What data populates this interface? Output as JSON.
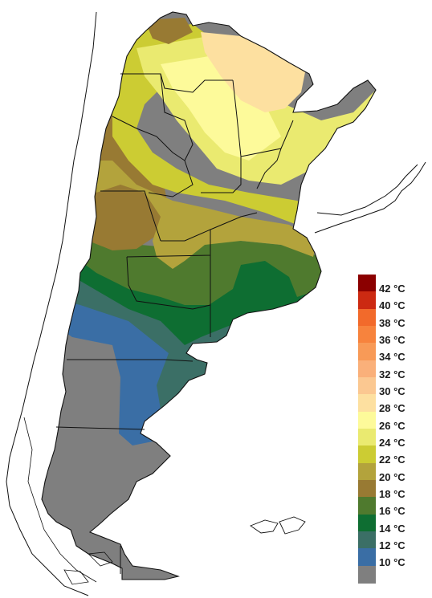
{
  "legend": {
    "items": [
      {
        "label": "42 °C",
        "color": "#8b0000"
      },
      {
        "label": "40 °C",
        "color": "#cc2a12"
      },
      {
        "label": "38 °C",
        "color": "#f26a2b"
      },
      {
        "label": "36 °C",
        "color": "#f7833d"
      },
      {
        "label": "34 °C",
        "color": "#f89a57"
      },
      {
        "label": "32 °C",
        "color": "#fab07a"
      },
      {
        "label": "30 °C",
        "color": "#fbc891"
      },
      {
        "label": "28 °C",
        "color": "#fde0a0"
      },
      {
        "label": "26 °C",
        "color": "#fdfa9a"
      },
      {
        "label": "24 °C",
        "color": "#eaea70"
      },
      {
        "label": "22 °C",
        "color": "#cccc33"
      },
      {
        "label": "20 °C",
        "color": "#b3a33c"
      },
      {
        "label": "18 °C",
        "color": "#987a33"
      },
      {
        "label": "16 °C",
        "color": "#4f7a2e"
      },
      {
        "label": "14 °C",
        "color": "#0e6e32"
      },
      {
        "label": "12 °C",
        "color": "#3b6f66"
      },
      {
        "label": "10 °C",
        "color": "#3a6ea5"
      },
      {
        "label": "",
        "color": "#7f7f7f"
      }
    ]
  },
  "map": {
    "colors": {
      "ocean": "#ffffff",
      "outline": "#111111",
      "gray": "#7f7f7f",
      "blue": "#3a6ea5",
      "teal": "#3b6f66",
      "green": "#0e6e32",
      "olive": "#4f7a2e",
      "brown": "#987a33",
      "khaki": "#b3a33c",
      "yellow_green": "#cccc33",
      "light_yellow": "#eaea70",
      "pale_yellow": "#fdfa9a",
      "peach": "#fde0a0"
    }
  }
}
